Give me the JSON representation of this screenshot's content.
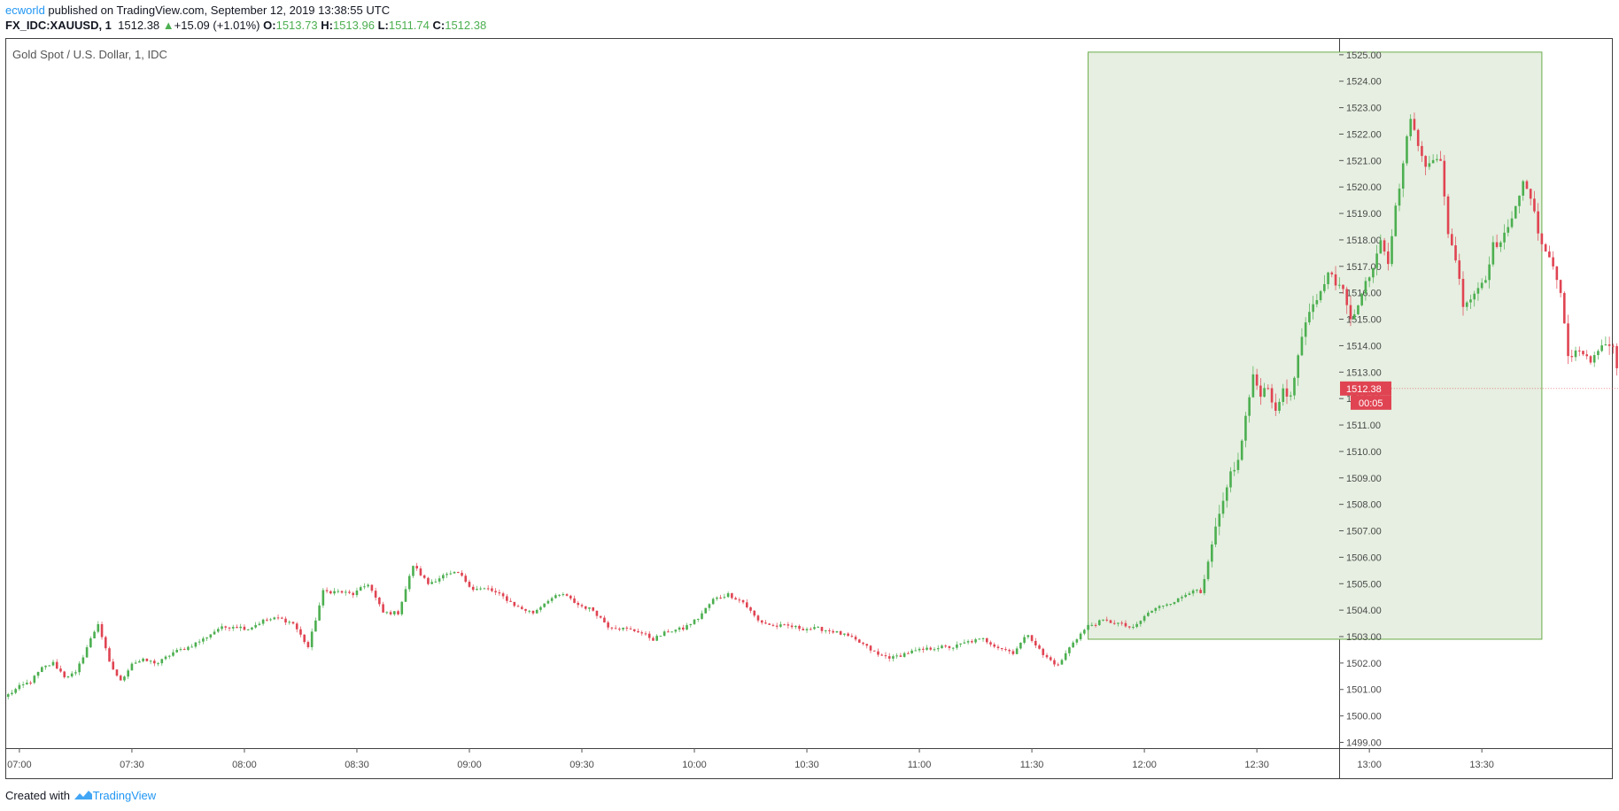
{
  "header": {
    "author": "ecworld",
    "published_text": " published on TradingView.com, September 12, 2019 13:38:55 UTC",
    "symbol": "FX_IDC:XAUUSD, 1",
    "last_price": "1512.38",
    "change_arrow": "▲",
    "change": "+15.09 (+1.01%)",
    "o_label": "O:",
    "o_value": "1513.73",
    "h_label": "H:",
    "h_value": "1513.96",
    "l_label": "L:",
    "l_value": "1511.74",
    "c_label": "C:",
    "c_value": "1512.38"
  },
  "footer": {
    "created_with": "Created with",
    "brand": "TradingView"
  },
  "chart_data": {
    "type": "candlestick",
    "title": "Gold Spot / U.S. Dollar, 1, IDC",
    "ylim": [
      1498.5,
      1525.5
    ],
    "y_ticks": [
      "1499.00",
      "1500.00",
      "1501.00",
      "1502.00",
      "1503.00",
      "1504.00",
      "1505.00",
      "1506.00",
      "1507.00",
      "1508.00",
      "1509.00",
      "1510.00",
      "1511.00",
      "1512.00",
      "1513.00",
      "1514.00",
      "1515.00",
      "1516.00",
      "1517.00",
      "1518.00",
      "1519.00",
      "1520.00",
      "1521.00",
      "1522.00",
      "1523.00",
      "1524.00",
      "1525.00"
    ],
    "x_ticks": [
      "07:00",
      "07:30",
      "08:00",
      "08:30",
      "09:00",
      "09:30",
      "10:00",
      "10:30",
      "11:00",
      "11:30",
      "12:00",
      "12:30",
      "13:00",
      "13:30"
    ],
    "start_time": "06:57",
    "interval_minutes": 1,
    "last_price_label": "1512.38",
    "countdown_label": "00:05",
    "colors": {
      "up": "#4caf50",
      "down": "#e04452",
      "highlight_fill": "#e6efe1",
      "highlight_stroke": "#6aac4a",
      "price_tag": "#e04452"
    },
    "highlight_box": {
      "start_time": "11:45",
      "end_time": "13:46",
      "top_price": 1525.1,
      "bottom_price": 1502.9
    },
    "close_waypoints": [
      [
        0,
        1500.8
      ],
      [
        3,
        1501.1
      ],
      [
        6,
        1501.3
      ],
      [
        9,
        1501.8
      ],
      [
        12,
        1502.0
      ],
      [
        15,
        1501.5
      ],
      [
        18,
        1501.6
      ],
      [
        21,
        1502.6
      ],
      [
        24,
        1503.5
      ],
      [
        27,
        1502.0
      ],
      [
        30,
        1501.3
      ],
      [
        33,
        1502.0
      ],
      [
        36,
        1502.1
      ],
      [
        40,
        1502.0
      ],
      [
        44,
        1502.4
      ],
      [
        48,
        1502.6
      ],
      [
        52,
        1502.9
      ],
      [
        56,
        1503.3
      ],
      [
        60,
        1503.4
      ],
      [
        64,
        1503.3
      ],
      [
        68,
        1503.6
      ],
      [
        72,
        1503.7
      ],
      [
        76,
        1503.5
      ],
      [
        80,
        1502.6
      ],
      [
        84,
        1504.7
      ],
      [
        88,
        1504.7
      ],
      [
        92,
        1504.6
      ],
      [
        96,
        1505.0
      ],
      [
        100,
        1503.9
      ],
      [
        104,
        1503.9
      ],
      [
        108,
        1505.7
      ],
      [
        112,
        1505.0
      ],
      [
        116,
        1505.3
      ],
      [
        120,
        1505.4
      ],
      [
        124,
        1504.8
      ],
      [
        128,
        1504.8
      ],
      [
        132,
        1504.5
      ],
      [
        136,
        1504.1
      ],
      [
        140,
        1503.9
      ],
      [
        144,
        1504.4
      ],
      [
        148,
        1504.6
      ],
      [
        152,
        1504.2
      ],
      [
        156,
        1504.0
      ],
      [
        160,
        1503.4
      ],
      [
        164,
        1503.3
      ],
      [
        168,
        1503.2
      ],
      [
        172,
        1502.9
      ],
      [
        176,
        1503.2
      ],
      [
        180,
        1503.3
      ],
      [
        184,
        1503.7
      ],
      [
        188,
        1504.4
      ],
      [
        192,
        1504.6
      ],
      [
        196,
        1504.3
      ],
      [
        200,
        1503.6
      ],
      [
        204,
        1503.4
      ],
      [
        208,
        1503.4
      ],
      [
        212,
        1503.3
      ],
      [
        216,
        1503.3
      ],
      [
        220,
        1503.2
      ],
      [
        224,
        1503.0
      ],
      [
        228,
        1502.7
      ],
      [
        232,
        1502.3
      ],
      [
        236,
        1502.2
      ],
      [
        240,
        1502.4
      ],
      [
        244,
        1502.5
      ],
      [
        248,
        1502.6
      ],
      [
        252,
        1502.6
      ],
      [
        256,
        1502.8
      ],
      [
        260,
        1502.9
      ],
      [
        264,
        1502.6
      ],
      [
        268,
        1502.4
      ],
      [
        272,
        1503.1
      ],
      [
        276,
        1502.3
      ],
      [
        280,
        1501.9
      ],
      [
        284,
        1502.8
      ],
      [
        288,
        1503.4
      ],
      [
        292,
        1503.6
      ],
      [
        296,
        1503.5
      ],
      [
        300,
        1503.3
      ],
      [
        304,
        1503.9
      ],
      [
        308,
        1504.2
      ],
      [
        312,
        1504.4
      ],
      [
        316,
        1504.8
      ],
      [
        318,
        1504.6
      ],
      [
        320,
        1505.7
      ],
      [
        322,
        1507.1
      ],
      [
        324,
        1508.0
      ],
      [
        326,
        1509.2
      ],
      [
        328,
        1509.6
      ],
      [
        330,
        1511.3
      ],
      [
        332,
        1512.8
      ],
      [
        334,
        1512.2
      ],
      [
        336,
        1512.5
      ],
      [
        338,
        1511.4
      ],
      [
        340,
        1512.4
      ],
      [
        342,
        1512.0
      ],
      [
        344,
        1513.6
      ],
      [
        346,
        1514.8
      ],
      [
        348,
        1515.6
      ],
      [
        350,
        1516.0
      ],
      [
        352,
        1516.9
      ],
      [
        354,
        1516.3
      ],
      [
        356,
        1516.1
      ],
      [
        358,
        1515.1
      ],
      [
        360,
        1515.5
      ],
      [
        362,
        1516.4
      ],
      [
        364,
        1517.0
      ],
      [
        366,
        1518.1
      ],
      [
        368,
        1517.2
      ],
      [
        370,
        1519.2
      ],
      [
        372,
        1520.9
      ],
      [
        374,
        1522.7
      ],
      [
        376,
        1521.5
      ],
      [
        378,
        1520.9
      ],
      [
        380,
        1521.1
      ],
      [
        382,
        1520.9
      ],
      [
        384,
        1518.3
      ],
      [
        386,
        1517.3
      ],
      [
        388,
        1515.6
      ],
      [
        390,
        1515.8
      ],
      [
        392,
        1516.2
      ],
      [
        394,
        1516.6
      ],
      [
        396,
        1517.8
      ],
      [
        398,
        1517.9
      ],
      [
        400,
        1518.4
      ],
      [
        402,
        1519.4
      ],
      [
        404,
        1520.1
      ],
      [
        406,
        1519.6
      ],
      [
        408,
        1518.3
      ],
      [
        410,
        1517.6
      ],
      [
        412,
        1517.0
      ],
      [
        414,
        1516.0
      ],
      [
        416,
        1513.6
      ],
      [
        418,
        1513.8
      ],
      [
        420,
        1513.6
      ],
      [
        422,
        1513.4
      ],
      [
        424,
        1513.9
      ],
      [
        426,
        1514.1
      ],
      [
        428,
        1513.9
      ],
      [
        430,
        1512.4
      ]
    ]
  }
}
